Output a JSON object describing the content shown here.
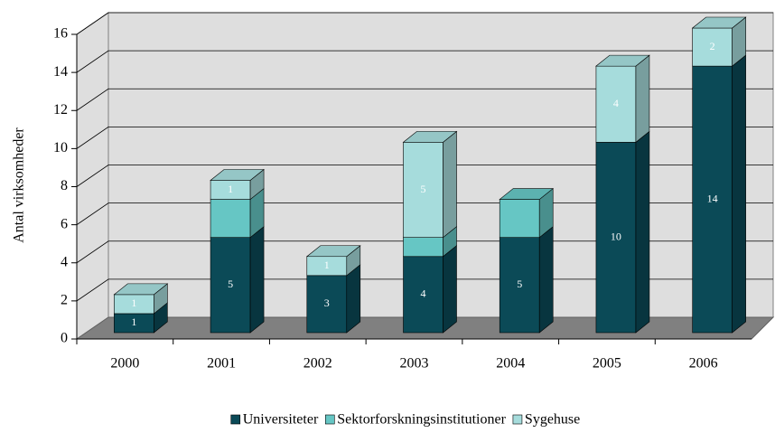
{
  "chart_data": {
    "type": "bar",
    "stacked": true,
    "three_d": true,
    "y_label": "Antal virksomheder",
    "categories": [
      "2000",
      "2001",
      "2002",
      "2003",
      "2004",
      "2005",
      "2006"
    ],
    "series": [
      {
        "name": "Universiteter",
        "color": "#0b4a57",
        "show_labels": true,
        "values": [
          1,
          5,
          3,
          4,
          5,
          10,
          14
        ]
      },
      {
        "name": "Sektorforskningsinstitutioner",
        "color": "#66c6c4",
        "show_labels": false,
        "values": [
          0,
          2,
          0,
          1,
          2,
          0,
          0
        ]
      },
      {
        "name": "Sygehuse",
        "color": "#a6dcdc",
        "show_labels": true,
        "values": [
          1,
          1,
          1,
          5,
          0,
          4,
          2
        ]
      }
    ],
    "ylim": [
      0,
      16
    ],
    "yticks": [
      0,
      2,
      4,
      6,
      8,
      10,
      12,
      14,
      16
    ],
    "grid": true,
    "legend": "bottom"
  }
}
